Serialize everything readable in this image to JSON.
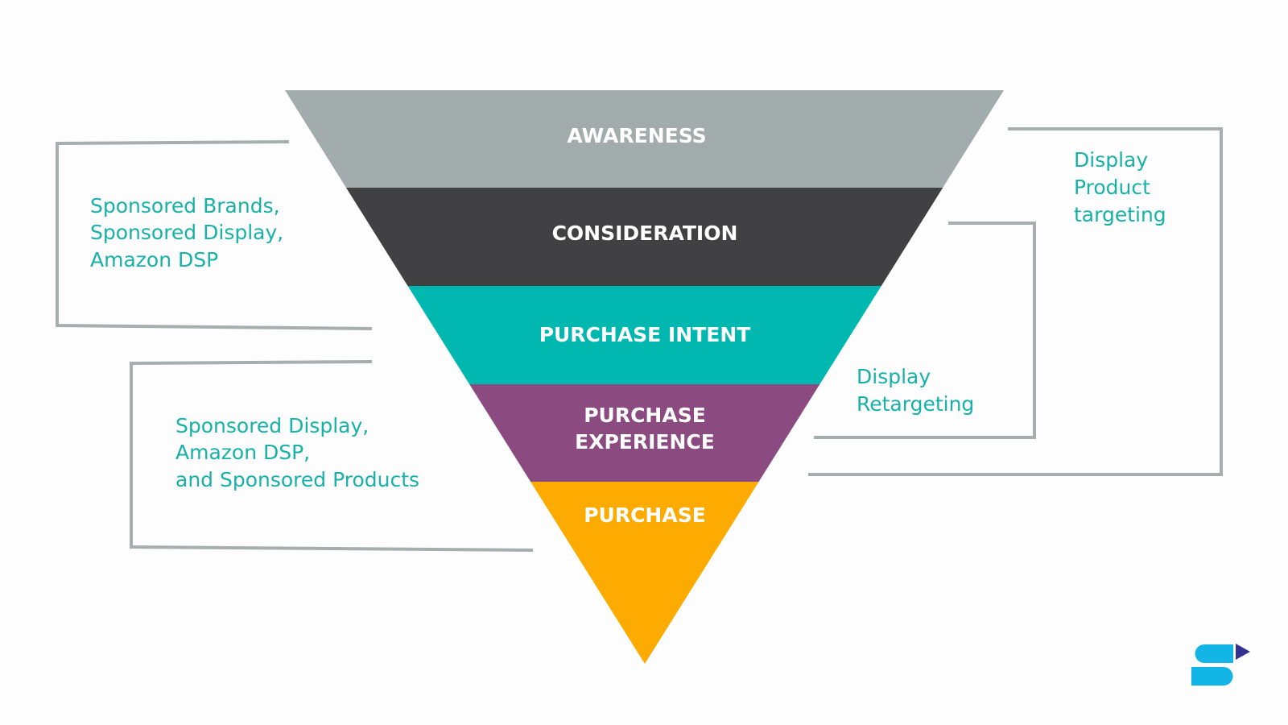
{
  "funnel": {
    "stages": [
      {
        "label_lines": [
          "AWARENESS"
        ],
        "color": "#a3acac"
      },
      {
        "label_lines": [
          "CONSIDERATION"
        ],
        "color": "#414143"
      },
      {
        "label_lines": [
          "PURCHASE INTENT"
        ],
        "color": "#00b8b0"
      },
      {
        "label_lines": [
          "PURCHASE",
          "EXPERIENCE"
        ],
        "color": "#8b4a80"
      },
      {
        "label_lines": [
          "PURCHASE"
        ],
        "color": "#fdab00"
      }
    ]
  },
  "annotations": {
    "upper_funnel": {
      "lines": [
        "Sponsored Brands,",
        "Sponsored Display,",
        "Amazon  DSP"
      ]
    },
    "lower_funnel": {
      "lines": [
        "Sponsored Display,",
        "Amazon  DSP,",
        "and Sponsored  Products"
      ]
    },
    "product_targeting": {
      "lines": [
        "Display",
        "Product",
        "targeting"
      ]
    },
    "retargeting": {
      "lines": [
        "Display",
        "Retargeting"
      ]
    }
  },
  "colors": {
    "annotation_text": "#17b1a9",
    "bracket_line": "#a6aeae",
    "logo_primary": "#12b5e5",
    "logo_accent": "#33338f"
  },
  "logo": {
    "icon": "brand-logo-icon"
  }
}
